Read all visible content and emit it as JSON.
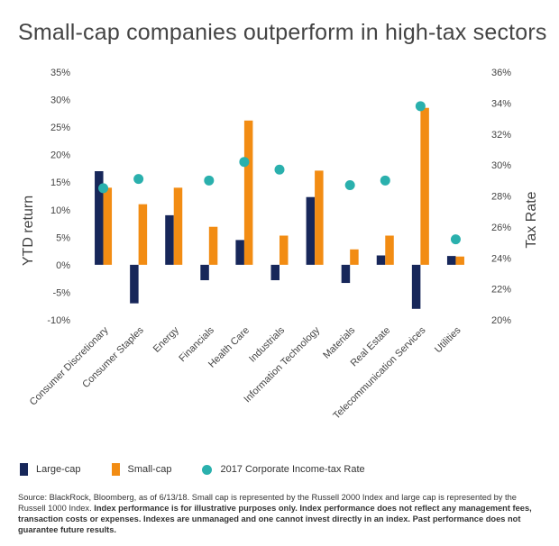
{
  "chart_data": {
    "type": "bar",
    "title": "Small-cap companies outperform in high-tax sectors",
    "ylabel": "YTD return",
    "y2label": "Tax Rate",
    "ylim": [
      -10,
      35
    ],
    "y2lim": [
      20,
      36
    ],
    "yticks": [
      "35%",
      "30%",
      "25%",
      "20%",
      "15%",
      "10%",
      "5%",
      "0%",
      "-5%",
      "-10%"
    ],
    "y2ticks": [
      "36%",
      "34%",
      "32%",
      "30%",
      "28%",
      "26%",
      "24%",
      "22%",
      "20%"
    ],
    "categories": [
      "Consumer Discretionary",
      "Consumer Staples",
      "Energy",
      "Financials",
      "Health Care",
      "Industrials",
      "Information Technology",
      "Materials",
      "Real Estate",
      "Telecommunication Services",
      "Utilities"
    ],
    "series": [
      {
        "name": "Large-cap",
        "color": "#17275a",
        "axis": "left",
        "values": [
          17,
          -7,
          9,
          -2.8,
          4.5,
          -2.8,
          12.3,
          -3.3,
          1.7,
          -8,
          1.6
        ]
      },
      {
        "name": "Small-cap",
        "color": "#f28c13",
        "axis": "left",
        "values": [
          14,
          11,
          14,
          6.9,
          26.2,
          5.3,
          17.1,
          2.8,
          5.3,
          28.5,
          1.5
        ]
      },
      {
        "name": "2017 Corporate Income-tax Rate",
        "color": "#2ab0ad",
        "axis": "right",
        "type": "scatter",
        "values": [
          28.5,
          29.1,
          null,
          29,
          30.2,
          29.7,
          null,
          28.7,
          29,
          33.8,
          25.2
        ]
      }
    ]
  },
  "legend": {
    "large_cap": "Large-cap",
    "small_cap": "Small-cap",
    "tax_rate": "2017 Corporate Income-tax Rate"
  },
  "source": {
    "plain": "Source: BlackRock, Bloomberg, as of 6/13/18. Small cap is represented by the Russell 2000 Index and large cap is represented by the Russell 1000 Index. ",
    "bold": "Index performance is for illustrative purposes only.  Index performance does not reflect any management fees, transaction costs or expenses. Indexes are unmanaged and one cannot invest directly in an index. Past performance does not guarantee future results."
  }
}
